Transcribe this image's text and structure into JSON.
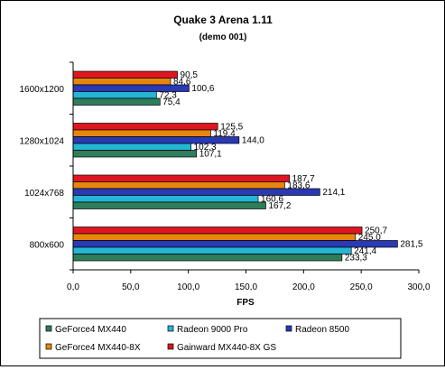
{
  "chart_data": {
    "type": "bar",
    "orientation": "horizontal",
    "title": "Quake 3 Arena 1.11",
    "subtitle": "(demo 001)",
    "xlabel": "FPS",
    "ylabel": "",
    "xlim": [
      0,
      300
    ],
    "x_ticks": [
      "0,0",
      "50,0",
      "100,0",
      "150,0",
      "200,0",
      "250,0",
      "300,0"
    ],
    "categories": [
      "1600x1200",
      "1280x1024",
      "1024x768",
      "800x600"
    ],
    "grid": false,
    "legend_position": "bottom",
    "series": [
      {
        "name": "GeForce4 MX440",
        "color": "#2e7d5b",
        "values": [
          75.4,
          107.1,
          167.2,
          233.3
        ],
        "labels": [
          "75,4",
          "107,1",
          "167,2",
          "233,3"
        ]
      },
      {
        "name": "Radeon 9000 Pro",
        "color": "#25b5d5",
        "values": [
          72.3,
          102.3,
          160.6,
          241.4
        ],
        "labels": [
          "72,3",
          "102,3",
          "160,6",
          "241,4"
        ]
      },
      {
        "name": "Radeon 8500",
        "color": "#2a39b6",
        "values": [
          100.6,
          144.0,
          214.1,
          281.5
        ],
        "labels": [
          "100,6",
          "144,0",
          "214,1",
          "281,5"
        ]
      },
      {
        "name": "GeForce4 MX440-8X",
        "color": "#e7860d",
        "values": [
          84.6,
          119.4,
          183.6,
          245.0
        ],
        "labels": [
          "84,6",
          "119,4",
          "183,6",
          "245,0"
        ]
      },
      {
        "name": "Gainward MX440-8X GS",
        "color": "#e01520",
        "values": [
          90.5,
          125.5,
          187.7,
          250.7
        ],
        "labels": [
          "90,5",
          "125,5",
          "187,7",
          "250,7"
        ]
      }
    ]
  }
}
